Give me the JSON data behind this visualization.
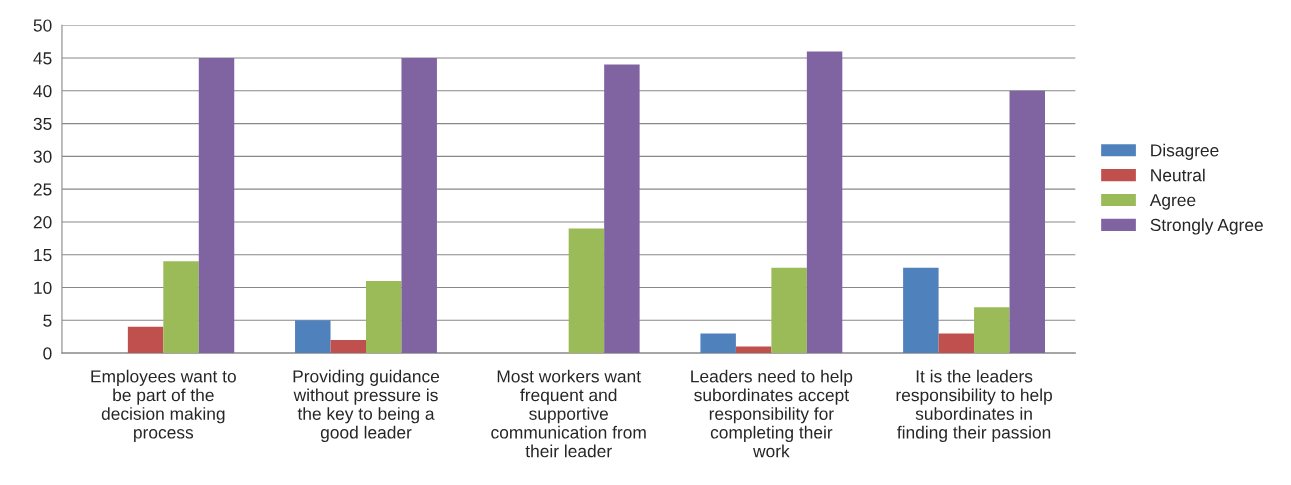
{
  "chart_data": {
    "type": "bar",
    "categories": [
      "Employees want to\nbe part of the\ndecision making\nprocess",
      "Providing guidance\nwithout pressure is\nthe key to being a\ngood leader",
      "Most workers want\nfrequent and\nsupportive\ncommunication from\ntheir leader",
      "Leaders need to help\nsubordinates accept\nresponsibility for\ncompleting their\nwork",
      "It is the leaders\nresponsibility to help\nsubordinates in\nfinding their passion"
    ],
    "series": [
      {
        "name": "Disagree",
        "color": "#4f81bd",
        "values": [
          null,
          5,
          null,
          3,
          13
        ]
      },
      {
        "name": "Neutral",
        "color": "#c0504d",
        "values": [
          4,
          2,
          null,
          1,
          3
        ]
      },
      {
        "name": "Agree",
        "color": "#9bbb59",
        "values": [
          14,
          11,
          19,
          13,
          7
        ]
      },
      {
        "name": "Strongly Agree",
        "color": "#8064a2",
        "values": [
          45,
          45,
          44,
          46,
          40
        ]
      }
    ],
    "ylim": [
      0,
      50
    ],
    "yticks": [
      0,
      5,
      10,
      15,
      20,
      25,
      30,
      35,
      40,
      45,
      50
    ],
    "grid": "y",
    "legend": "right"
  }
}
